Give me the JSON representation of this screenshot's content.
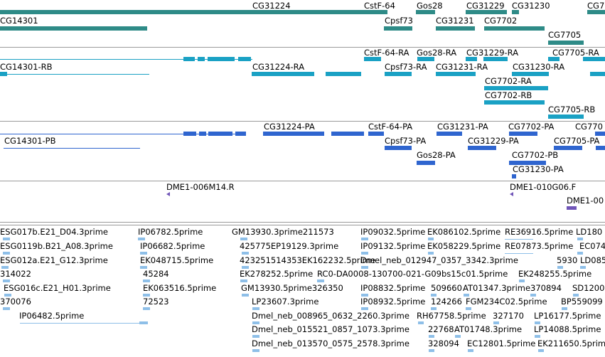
{
  "tracks": {
    "genes": [
      "CG31224",
      "CstF-64",
      "Gos28",
      "CG31229",
      "CG31230",
      "CG7",
      "CG14301",
      "Cpsf73",
      "CG31231",
      "CG7702",
      "CG7705"
    ],
    "transcripts": [
      "CstF-64-RA",
      "Gos28-RA",
      "CG31229-RA",
      "CG7705-RA",
      "CG14301-RB",
      "CG31224-RA",
      "Cpsf73-RA",
      "CG31231-RA",
      "CG31230-RA",
      "CG7702-RA",
      "CG7702-RB",
      "CG7705-RB"
    ],
    "proteins": [
      "CG31224-PA",
      "CstF-64-PA",
      "CG31231-PA",
      "CG7702-PA",
      "CG770",
      "CG14301-PB",
      "Cpsf73-PA",
      "CG31229-PA",
      "CG7705-PA",
      "Gos28-PA",
      "CG7702-PB",
      "CG31230-PA"
    ],
    "clones": [
      "DME1-006M14.R",
      "DME1-010G06.F",
      "DME1-00"
    ],
    "ests": [
      "ESG017b.E21_D04.3prime",
      "IP06782.5prime",
      "GM13930.3prime211573",
      "IP09032.5prime",
      "EK086102.5prime",
      "RE36916.5prime",
      "LD180",
      "ESG0119b.B21_A08.3prime",
      "IP06682.5prime",
      "425775EP19129.3prime",
      "IP09132.5prime",
      "EK058229.5prime",
      "RE07873.5prime",
      "EC0740",
      "ESG012a.E21_G12.3prime",
      "EK048715.5prime",
      "423251514353EK162232.5prime",
      "Dmel_neb_012947_0357_3342.3prime",
      "5930",
      "LD085",
      "314022",
      "45284",
      "EK278252.5prime",
      "RC0-DA0008-130700-021-G09bs15c01.5prime",
      "EK248255.5prime",
      "ESG016c.E21_H01.3prime",
      "EK063516.5prime",
      "GM13930.5prime326350",
      "IP08832.5prime",
      "509660",
      "AT01347.3prime",
      "370894",
      "SD1200",
      "370076",
      "72523",
      "LP23607.3prime",
      "IP08932.5prime",
      "124266",
      "FGM234C02.5prime",
      "BP559099",
      "IP06482.5prime",
      "Dmel_neb_008965_0632_2260.3prime",
      "RH67758.5prime",
      "327170",
      "LP16177.5prime",
      "Dmel_neb_015521_0857_1073.3prime",
      "22768",
      "AT01748.3prime",
      "LP14088.5prime",
      "Dmel_neb_013570_0575_2578.3prime",
      "328094",
      "EC12801.5prime",
      "EK211650.5prime"
    ]
  },
  "colors": {
    "gene": "#2e8b87",
    "transcript": "#1aa1c4",
    "protein": "#2f65cf",
    "clone": "#7055b8",
    "est": "#8ebfe8",
    "separator": "#9a9a9a"
  }
}
